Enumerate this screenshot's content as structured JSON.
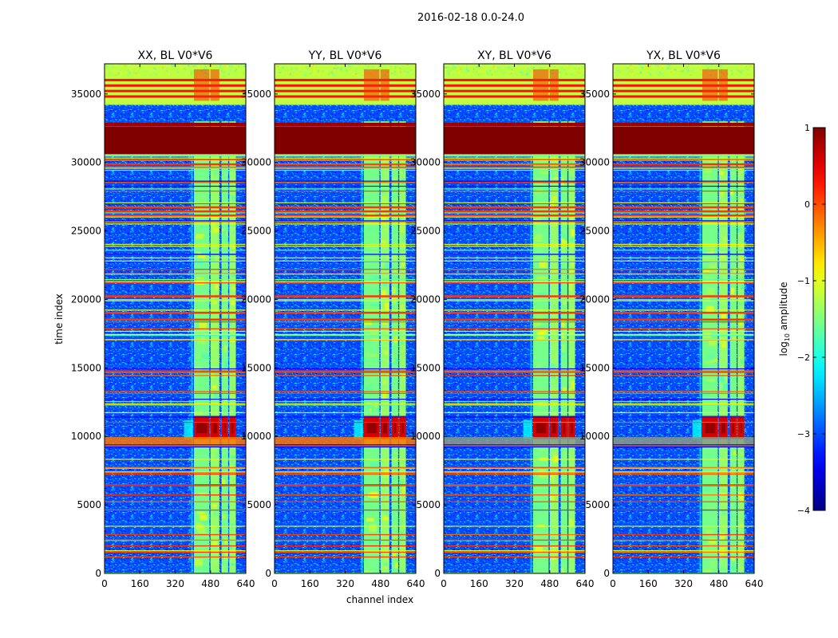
{
  "suptitle": "2016-02-18 0.0-24.0",
  "chart_data": {
    "type": "heatmap",
    "title": "2016-02-18 0.0-24.0",
    "xlabel": "channel index",
    "ylabel": "time index",
    "xlim": [
      0,
      640
    ],
    "ylim": [
      0,
      37200
    ],
    "xticks": [
      0,
      160,
      320,
      480,
      640
    ],
    "yticks": [
      0,
      5000,
      10000,
      15000,
      20000,
      25000,
      30000,
      35000
    ],
    "colormap": "jet",
    "colorbar": {
      "label_prefix": "log",
      "label_sub": "10",
      "label_suffix": " amplitude",
      "range": [
        -4,
        1
      ],
      "ticks": [
        1,
        0,
        -1,
        -2,
        -3,
        -4
      ],
      "tick_labels": [
        "1",
        "0",
        "−1",
        "−2",
        "−3",
        "−4"
      ]
    },
    "panels": [
      {
        "title": "XX, BL V0*V6",
        "rfi_channel_start": 400,
        "burst_time": [
          9800,
          11500
        ]
      },
      {
        "title": "YY, BL V0*V6",
        "rfi_channel_start": 400,
        "burst_time": [
          9800,
          11500
        ]
      },
      {
        "title": "XY, BL V0*V6",
        "rfi_channel_start": 400,
        "burst_time": [
          9800,
          11500
        ]
      },
      {
        "title": "YX, BL V0*V6",
        "rfi_channel_start": 400,
        "burst_time": [
          9800,
          11500
        ]
      }
    ],
    "background_log_amplitude": -3.0,
    "saturated_band": {
      "time": [
        30600,
        32600
      ],
      "log_amplitude": 1.0
    },
    "high_band": {
      "time": [
        33000,
        37200
      ],
      "log_amplitude": -1.2
    },
    "rfi_channel_groups": [
      [
        405,
        475
      ],
      [
        480,
        520
      ],
      [
        530,
        560
      ],
      [
        565,
        595
      ]
    ]
  }
}
